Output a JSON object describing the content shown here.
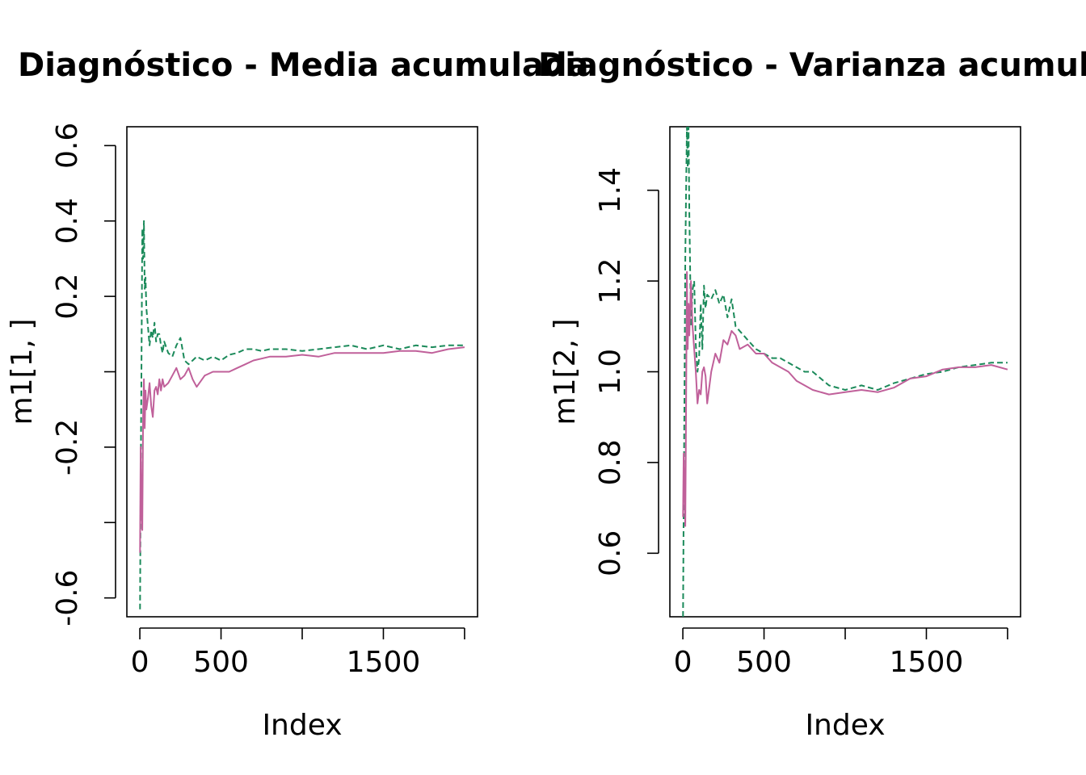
{
  "chart_data": [
    {
      "type": "line",
      "title": "Diagnóstico - Media acumulada",
      "xlabel": "Index",
      "ylabel": "m1[1, ]",
      "xlim": [
        -80,
        2080
      ],
      "ylim": [
        -0.65,
        0.65
      ],
      "x_ticks": [
        0,
        500,
        1000,
        1500,
        2000
      ],
      "x_tick_labels": [
        "0",
        "500",
        "",
        "1500",
        ""
      ],
      "y_ticks": [
        -0.6,
        -0.4,
        -0.2,
        0.0,
        0.2,
        0.4,
        0.6
      ],
      "y_tick_labels": [
        "-0.6",
        "",
        "-0.2",
        "",
        "0.2",
        "0.4",
        "0.6"
      ],
      "grid": false,
      "legend": "none",
      "series": [
        {
          "color": "#1b8a5a",
          "dash": "dashed",
          "x": [
            1,
            5,
            10,
            15,
            20,
            25,
            30,
            35,
            40,
            50,
            60,
            70,
            80,
            90,
            100,
            110,
            120,
            130,
            140,
            150,
            175,
            200,
            225,
            250,
            275,
            300,
            325,
            350,
            400,
            450,
            500,
            550,
            600,
            650,
            700,
            750,
            800,
            900,
            1000,
            1100,
            1200,
            1300,
            1400,
            1500,
            1600,
            1700,
            1800,
            1900,
            2000
          ],
          "y": [
            -0.63,
            -0.3,
            0.02,
            0.38,
            0.3,
            0.4,
            0.22,
            0.25,
            0.17,
            0.12,
            0.07,
            0.11,
            0.09,
            0.13,
            0.08,
            0.1,
            0.1,
            0.07,
            0.05,
            0.08,
            0.05,
            0.04,
            0.07,
            0.09,
            0.03,
            0.02,
            0.03,
            0.04,
            0.03,
            0.04,
            0.03,
            0.045,
            0.05,
            0.06,
            0.06,
            0.055,
            0.06,
            0.06,
            0.055,
            0.06,
            0.065,
            0.07,
            0.06,
            0.07,
            0.06,
            0.07,
            0.065,
            0.07,
            0.07
          ]
        },
        {
          "color": "#c0609a",
          "dash": "solid",
          "x": [
            1,
            5,
            10,
            15,
            20,
            25,
            30,
            35,
            40,
            50,
            60,
            70,
            80,
            90,
            100,
            110,
            120,
            130,
            140,
            150,
            175,
            200,
            225,
            250,
            275,
            300,
            325,
            350,
            400,
            450,
            500,
            550,
            600,
            650,
            700,
            750,
            800,
            900,
            1000,
            1100,
            1200,
            1300,
            1400,
            1500,
            1600,
            1700,
            1800,
            1900,
            2000
          ],
          "y": [
            -0.48,
            -0.2,
            -0.35,
            -0.42,
            -0.12,
            -0.02,
            -0.15,
            -0.05,
            -0.1,
            -0.07,
            -0.03,
            -0.09,
            -0.12,
            -0.05,
            -0.04,
            -0.06,
            -0.02,
            -0.05,
            -0.02,
            -0.04,
            -0.03,
            -0.01,
            0.01,
            -0.02,
            -0.01,
            0.01,
            -0.02,
            -0.04,
            -0.01,
            0.0,
            0.0,
            0.0,
            0.01,
            0.02,
            0.03,
            0.035,
            0.04,
            0.04,
            0.045,
            0.04,
            0.05,
            0.05,
            0.05,
            0.05,
            0.055,
            0.055,
            0.05,
            0.06,
            0.065
          ]
        }
      ]
    },
    {
      "type": "line",
      "title": "Diagnóstico - Varianza acumulada",
      "xlabel": "Index",
      "ylabel": "m1[2, ]",
      "xlim": [
        -80,
        2080
      ],
      "ylim": [
        0.46,
        1.54
      ],
      "x_ticks": [
        0,
        500,
        1000,
        1500,
        2000
      ],
      "x_tick_labels": [
        "0",
        "500",
        "",
        "1500",
        ""
      ],
      "y_ticks": [
        0.6,
        0.8,
        1.0,
        1.2,
        1.4
      ],
      "y_tick_labels": [
        "0.6",
        "0.8",
        "1.0",
        "1.2",
        "1.4"
      ],
      "grid": false,
      "legend": "none",
      "series": [
        {
          "color": "#1b8a5a",
          "dash": "dashed",
          "x": [
            1,
            5,
            10,
            15,
            20,
            25,
            30,
            35,
            40,
            50,
            60,
            70,
            80,
            90,
            100,
            110,
            120,
            130,
            140,
            150,
            175,
            200,
            225,
            250,
            275,
            300,
            325,
            350,
            400,
            450,
            500,
            550,
            600,
            650,
            700,
            750,
            800,
            900,
            1000,
            1100,
            1200,
            1300,
            1400,
            1500,
            1600,
            1700,
            1800,
            1900,
            2000
          ],
          "y": [
            0.46,
            0.7,
            0.95,
            1.25,
            1.4,
            1.54,
            1.45,
            1.54,
            1.35,
            1.1,
            1.18,
            1.2,
            1.06,
            1.0,
            1.03,
            1.15,
            1.05,
            1.19,
            1.14,
            1.17,
            1.16,
            1.18,
            1.15,
            1.17,
            1.12,
            1.16,
            1.1,
            1.09,
            1.07,
            1.05,
            1.04,
            1.03,
            1.03,
            1.02,
            1.01,
            1.0,
            1.0,
            0.97,
            0.96,
            0.97,
            0.96,
            0.975,
            0.985,
            0.995,
            1.0,
            1.01,
            1.015,
            1.02,
            1.02
          ]
        },
        {
          "color": "#c0609a",
          "dash": "solid",
          "x": [
            1,
            5,
            10,
            15,
            20,
            25,
            30,
            35,
            40,
            50,
            60,
            70,
            80,
            90,
            100,
            110,
            120,
            130,
            140,
            150,
            175,
            200,
            225,
            250,
            275,
            300,
            325,
            350,
            400,
            450,
            500,
            550,
            600,
            650,
            700,
            750,
            800,
            900,
            1000,
            1100,
            1200,
            1300,
            1400,
            1500,
            1600,
            1700,
            1800,
            1900,
            2000
          ],
          "y": [
            0.68,
            0.82,
            0.75,
            0.66,
            0.93,
            1.22,
            1.05,
            1.15,
            1.08,
            1.2,
            1.1,
            1.05,
            1.0,
            0.93,
            0.96,
            0.95,
            1.0,
            1.01,
            0.99,
            0.93,
            1.0,
            1.04,
            1.02,
            1.07,
            1.06,
            1.09,
            1.08,
            1.05,
            1.06,
            1.04,
            1.04,
            1.02,
            1.01,
            1.0,
            0.98,
            0.97,
            0.96,
            0.95,
            0.955,
            0.96,
            0.955,
            0.965,
            0.985,
            0.99,
            1.005,
            1.01,
            1.01,
            1.015,
            1.005
          ]
        }
      ]
    }
  ]
}
